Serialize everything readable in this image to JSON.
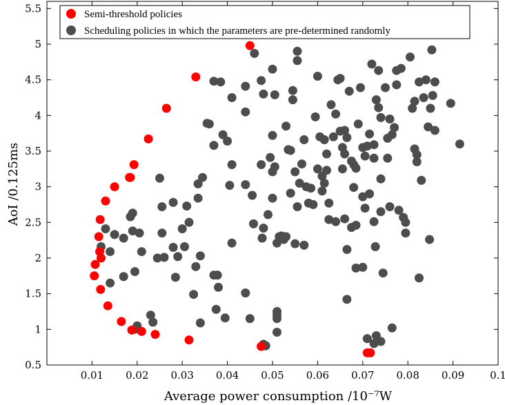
{
  "chart_data": {
    "type": "scatter",
    "title": "",
    "xlabel": "Average power consumption /10⁻⁷W",
    "ylabel": "AoI /0.125ms",
    "xlim": [
      0.0,
      0.1
    ],
    "ylim": [
      0.5,
      5.6
    ],
    "xticks": [
      0.01,
      0.02,
      0.03,
      0.04,
      0.05,
      0.06,
      0.07,
      0.08,
      0.09,
      0.1
    ],
    "xtick_labels": [
      "0.01",
      "0.02",
      "0.03",
      "0.04",
      "0.05",
      "0.06",
      "0.07",
      "0.08",
      "0.09",
      "0.1"
    ],
    "yticks": [
      0.5,
      1,
      1.5,
      2,
      2.5,
      3,
      3.5,
      4,
      4.5,
      5,
      5.5
    ],
    "ytick_labels": [
      "0.5",
      "1",
      "1.5",
      "2",
      "2.5",
      "3",
      "3.5",
      "4",
      "4.5",
      "5",
      "5.5"
    ],
    "grid": false,
    "legend_position": "top-right",
    "series": [
      {
        "name": "Semi-threshold policies",
        "color": "#ff0000",
        "points": [
          [
            0.0105,
            1.75
          ],
          [
            0.0107,
            1.91
          ],
          [
            0.0115,
            2.3
          ],
          [
            0.0117,
            2.09
          ],
          [
            0.0118,
            2.54
          ],
          [
            0.0119,
            1.56
          ],
          [
            0.012,
            2.0
          ],
          [
            0.013,
            2.8
          ],
          [
            0.0135,
            1.33
          ],
          [
            0.015,
            3.0
          ],
          [
            0.0165,
            1.11
          ],
          [
            0.0183,
            3.13
          ],
          [
            0.0185,
            3.13
          ],
          [
            0.0193,
            3.31
          ],
          [
            0.0188,
            0.99
          ],
          [
            0.021,
            0.97
          ],
          [
            0.0225,
            3.67
          ],
          [
            0.024,
            0.93
          ],
          [
            0.0265,
            4.1
          ],
          [
            0.0315,
            0.85
          ],
          [
            0.033,
            4.54
          ],
          [
            0.045,
            4.98
          ],
          [
            0.0475,
            0.76
          ],
          [
            0.071,
            0.67
          ],
          [
            0.0717,
            0.67
          ]
        ]
      },
      {
        "name": "Scheduling policies in which the parameters are pre-determined randomly",
        "color": "#4d4d4d",
        "points": [
          [
            0.012,
            2.16
          ],
          [
            0.013,
            2.41
          ],
          [
            0.014,
            2.09
          ],
          [
            0.014,
            1.65
          ],
          [
            0.015,
            2.33
          ],
          [
            0.017,
            2.28
          ],
          [
            0.017,
            1.74
          ],
          [
            0.0185,
            2.58
          ],
          [
            0.019,
            2.63
          ],
          [
            0.019,
            2.38
          ],
          [
            0.0195,
            1.81
          ],
          [
            0.0195,
            1.0
          ],
          [
            0.02,
            1.05
          ],
          [
            0.0205,
            2.35
          ],
          [
            0.021,
            2.09
          ],
          [
            0.023,
            1.2
          ],
          [
            0.0235,
            1.1
          ],
          [
            0.0245,
            2.0
          ],
          [
            0.025,
            3.12
          ],
          [
            0.0255,
            2.35
          ],
          [
            0.0255,
            2.72
          ],
          [
            0.026,
            2.01
          ],
          [
            0.028,
            2.78
          ],
          [
            0.028,
            2.15
          ],
          [
            0.0285,
            1.73
          ],
          [
            0.029,
            2.02
          ],
          [
            0.03,
            2.41
          ],
          [
            0.0305,
            2.16
          ],
          [
            0.031,
            2.73
          ],
          [
            0.0315,
            2.5
          ],
          [
            0.0325,
            1.49
          ],
          [
            0.033,
            1.88
          ],
          [
            0.0335,
            3.04
          ],
          [
            0.0335,
            2.84
          ],
          [
            0.034,
            2.03
          ],
          [
            0.034,
            1.09
          ],
          [
            0.0345,
            3.13
          ],
          [
            0.0355,
            3.89
          ],
          [
            0.036,
            3.88
          ],
          [
            0.037,
            4.48
          ],
          [
            0.037,
            3.58
          ],
          [
            0.037,
            1.76
          ],
          [
            0.0375,
            1.28
          ],
          [
            0.0378,
            1.76
          ],
          [
            0.038,
            1.59
          ],
          [
            0.0385,
            4.47
          ],
          [
            0.039,
            3.73
          ],
          [
            0.0395,
            1.16
          ],
          [
            0.04,
            3.64
          ],
          [
            0.0405,
            3.02
          ],
          [
            0.041,
            3.31
          ],
          [
            0.041,
            2.21
          ],
          [
            0.041,
            4.25
          ],
          [
            0.044,
            4.41
          ],
          [
            0.044,
            4.05
          ],
          [
            0.044,
            3.03
          ],
          [
            0.044,
            1.51
          ],
          [
            0.045,
            1.15
          ],
          [
            0.0455,
            2.88
          ],
          [
            0.0458,
            2.48
          ],
          [
            0.046,
            4.87
          ],
          [
            0.0475,
            4.49
          ],
          [
            0.0475,
            3.31
          ],
          [
            0.0477,
            2.28
          ],
          [
            0.048,
            4.3
          ],
          [
            0.048,
            2.42
          ],
          [
            0.048,
            0.79
          ],
          [
            0.0485,
            0.77
          ],
          [
            0.049,
            2.61
          ],
          [
            0.0495,
            3.41
          ],
          [
            0.05,
            3.21
          ],
          [
            0.05,
            4.65
          ],
          [
            0.05,
            3.72
          ],
          [
            0.05,
            2.84
          ],
          [
            0.0505,
            4.29
          ],
          [
            0.0505,
            3.28
          ],
          [
            0.051,
            1.25
          ],
          [
            0.051,
            1.15
          ],
          [
            0.051,
            0.96
          ],
          [
            0.051,
            2.21
          ],
          [
            0.0515,
            2.3
          ],
          [
            0.052,
            2.31
          ],
          [
            0.0525,
            2.26
          ],
          [
            0.053,
            2.3
          ],
          [
            0.053,
            3.85
          ],
          [
            0.0535,
            3.52
          ],
          [
            0.054,
            3.51
          ],
          [
            0.054,
            2.91
          ],
          [
            0.0545,
            4.22
          ],
          [
            0.0545,
            4.35
          ],
          [
            0.055,
            3.21
          ],
          [
            0.0555,
            4.9
          ],
          [
            0.0555,
            4.77
          ],
          [
            0.055,
            2.2
          ],
          [
            0.0555,
            2.72
          ],
          [
            0.056,
            3.05
          ],
          [
            0.0565,
            3.32
          ],
          [
            0.057,
            3.66
          ],
          [
            0.057,
            2.18
          ],
          [
            0.0575,
            3.0
          ],
          [
            0.058,
            2.77
          ],
          [
            0.0585,
            2.98
          ],
          [
            0.059,
            2.75
          ],
          [
            0.0595,
            3.98
          ],
          [
            0.06,
            4.55
          ],
          [
            0.06,
            3.25
          ],
          [
            0.0605,
            3.7
          ],
          [
            0.061,
            3.15
          ],
          [
            0.061,
            2.94
          ],
          [
            0.0615,
            3.05
          ],
          [
            0.0615,
            3.66
          ],
          [
            0.062,
            3.23
          ],
          [
            0.062,
            3.46
          ],
          [
            0.0625,
            2.77
          ],
          [
            0.0625,
            2.54
          ],
          [
            0.063,
            4.15
          ],
          [
            0.0635,
            3.7
          ],
          [
            0.064,
            4.02
          ],
          [
            0.064,
            2.51
          ],
          [
            0.0645,
            4.5
          ],
          [
            0.065,
            4.52
          ],
          [
            0.065,
            3.78
          ],
          [
            0.0655,
            3.55
          ],
          [
            0.0655,
            3.25
          ],
          [
            0.066,
            3.79
          ],
          [
            0.066,
            3.46
          ],
          [
            0.066,
            2.55
          ],
          [
            0.0665,
            3.69
          ],
          [
            0.0665,
            2.12
          ],
          [
            0.0665,
            1.42
          ],
          [
            0.067,
            4.34
          ],
          [
            0.0675,
            2.43
          ],
          [
            0.0675,
            3.36
          ],
          [
            0.068,
            3.31
          ],
          [
            0.068,
            2.99
          ],
          [
            0.0685,
            3.26
          ],
          [
            0.0685,
            2.46
          ],
          [
            0.0685,
            1.86
          ],
          [
            0.069,
            3.88
          ],
          [
            0.0695,
            4.39
          ],
          [
            0.07,
            3.55
          ],
          [
            0.07,
            1.87
          ],
          [
            0.07,
            2.86
          ],
          [
            0.0705,
            3.43
          ],
          [
            0.0705,
            2.7
          ],
          [
            0.071,
            3.57
          ],
          [
            0.071,
            0.87
          ],
          [
            0.0715,
            3.74
          ],
          [
            0.0715,
            2.9
          ],
          [
            0.072,
            4.72
          ],
          [
            0.0725,
            3.59
          ],
          [
            0.0725,
            3.4
          ],
          [
            0.0725,
            2.51
          ],
          [
            0.0728,
            2.16
          ],
          [
            0.073,
            4.22
          ],
          [
            0.073,
            0.91
          ],
          [
            0.0735,
            4.63
          ],
          [
            0.0735,
            4.11
          ],
          [
            0.074,
            3.97
          ],
          [
            0.074,
            3.11
          ],
          [
            0.074,
            2.65
          ],
          [
            0.0745,
            1.79
          ],
          [
            0.075,
            4.39
          ],
          [
            0.0755,
            3.68
          ],
          [
            0.0755,
            3.4
          ],
          [
            0.076,
            3.95
          ],
          [
            0.076,
            2.72
          ],
          [
            0.0765,
            3.73
          ],
          [
            0.0765,
            1.02
          ],
          [
            0.077,
            3.83
          ],
          [
            0.0775,
            4.63
          ],
          [
            0.0775,
            4.43
          ],
          [
            0.078,
            2.67
          ],
          [
            0.0785,
            4.66
          ],
          [
            0.079,
            2.57
          ],
          [
            0.0795,
            2.5
          ],
          [
            0.0795,
            2.35
          ],
          [
            0.0805,
            4.82
          ],
          [
            0.081,
            4.1
          ],
          [
            0.0815,
            4.2
          ],
          [
            0.0815,
            3.53
          ],
          [
            0.082,
            3.45
          ],
          [
            0.082,
            3.35
          ],
          [
            0.0825,
            4.47
          ],
          [
            0.0825,
            1.72
          ],
          [
            0.083,
            3.09
          ],
          [
            0.0835,
            4.25
          ],
          [
            0.084,
            4.5
          ],
          [
            0.0845,
            3.84
          ],
          [
            0.0848,
            2.26
          ],
          [
            0.085,
            4.1
          ],
          [
            0.0853,
            4.92
          ],
          [
            0.0855,
            4.28
          ],
          [
            0.086,
            4.47
          ],
          [
            0.086,
            3.79
          ],
          [
            0.0895,
            4.17
          ],
          [
            0.0915,
            3.6
          ],
          [
            0.074,
            0.83
          ],
          [
            0.0725,
            0.8
          ],
          [
            0.051,
            1.2
          ]
        ]
      }
    ]
  }
}
